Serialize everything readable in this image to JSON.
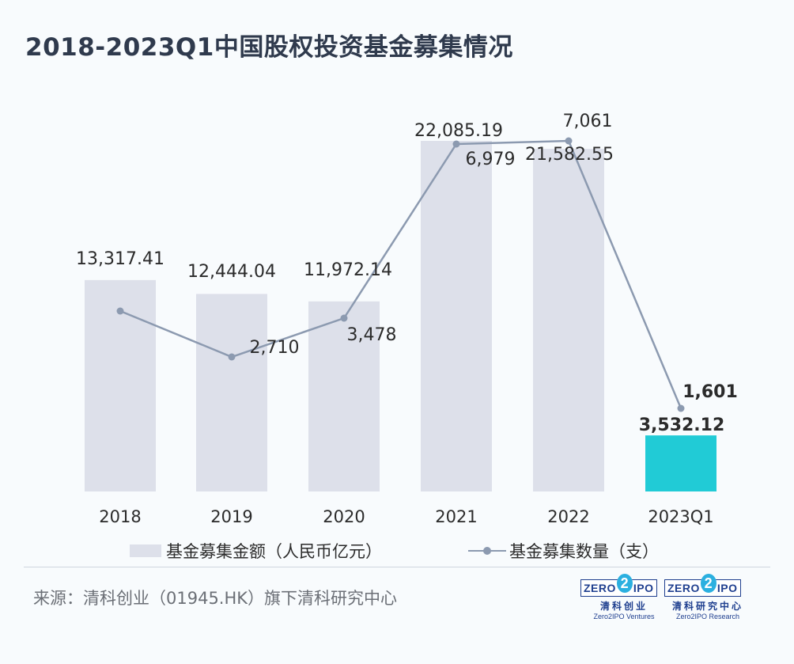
{
  "title": "2018-2023Q1中国股权投资基金募集情况",
  "chart_data": {
    "type": "bar",
    "categories": [
      "2018",
      "2019",
      "2020",
      "2021",
      "2022",
      "2023Q1"
    ],
    "series": [
      {
        "name": "基金募集金额（人民币亿元）",
        "kind": "bar",
        "values": [
          13317.41,
          12444.04,
          11972.14,
          22085.19,
          21582.55,
          3532.12
        ],
        "labels": [
          "13,317.41",
          "12,444.04",
          "11,972.14",
          "22,085.19",
          "21,582.55",
          "3,532.12"
        ],
        "color": "#dde0ea",
        "highlight_color": "#21cbd6"
      },
      {
        "name": "基金募集数量（支）",
        "kind": "line",
        "values": [
          null,
          2710,
          3478,
          6979,
          7061,
          1601
        ],
        "labels": [
          "",
          "2,710",
          "3,478",
          "6,979",
          "7,061",
          "1,601"
        ],
        "color": "#8c9ab0"
      }
    ],
    "legend_position": "bottom",
    "grid": false
  },
  "legend": {
    "bar_label": "基金募集金额（人民币亿元）",
    "line_label": "基金募集数量（支）"
  },
  "source": "来源：清科创业（01945.HK）旗下清科研究中心",
  "logos": [
    {
      "left": "ZERO",
      "mid": "2",
      "right": "IPO",
      "cn": "清科创业",
      "en": "Zero2IPO Ventures"
    },
    {
      "left": "ZERO",
      "mid": "2",
      "right": "IPO",
      "cn": "清科研究中心",
      "en": "Zero2IPO Research"
    }
  ]
}
